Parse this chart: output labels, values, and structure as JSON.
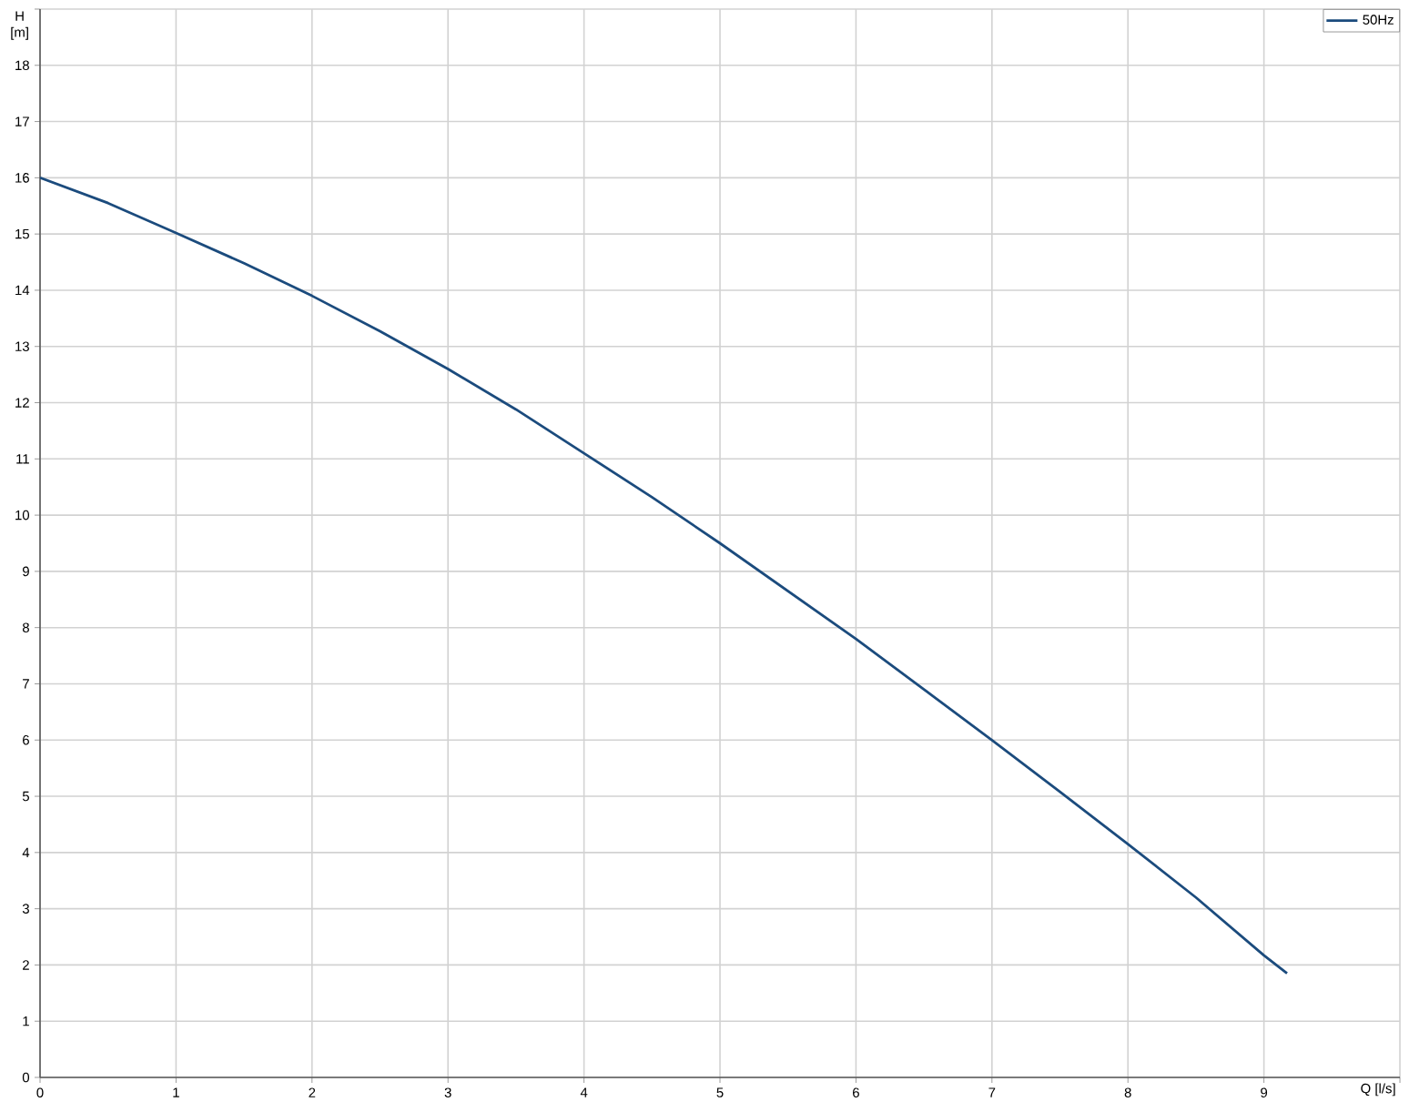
{
  "chart_data": {
    "type": "line",
    "xlabel": "Q [l/s]",
    "ylabel": "H [m]",
    "series": [
      {
        "name": "50Hz",
        "color": "#1b4b7d",
        "x": [
          0,
          0.5,
          1,
          1.5,
          2,
          2.5,
          3,
          3.5,
          4,
          4.5,
          5,
          5.5,
          6,
          6.5,
          7,
          7.5,
          8,
          8.5,
          9,
          9.17
        ],
        "values": [
          16.0,
          15.55,
          15.02,
          14.48,
          13.9,
          13.27,
          12.6,
          11.88,
          11.1,
          10.32,
          9.5,
          8.65,
          7.8,
          6.9,
          6.0,
          5.08,
          4.15,
          3.2,
          2.17,
          1.85
        ]
      }
    ],
    "xlim": [
      0,
      10
    ],
    "xticks": [
      0,
      1,
      2,
      3,
      4,
      5,
      6,
      7,
      8,
      9,
      {
        "value": 10,
        "label": null
      }
    ],
    "ylim": [
      0,
      19
    ],
    "yticks": [
      0,
      1,
      2,
      3,
      4,
      5,
      6,
      7,
      8,
      9,
      10,
      11,
      12,
      13,
      14,
      15,
      16,
      17,
      18,
      {
        "value": 19,
        "label": null
      }
    ],
    "grid": true,
    "legend": "top right",
    "marker": "none",
    "line_style": "solid"
  }
}
